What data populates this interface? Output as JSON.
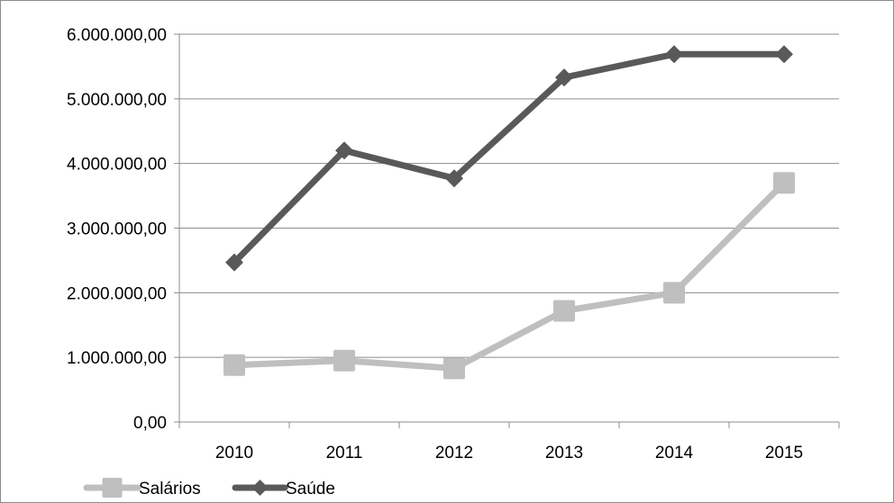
{
  "chart_data": {
    "type": "line",
    "categories": [
      "2010",
      "2011",
      "2012",
      "2013",
      "2014",
      "2015"
    ],
    "series": [
      {
        "name": "Salários",
        "values": [
          880000,
          950000,
          830000,
          1720000,
          2000000,
          3700000
        ],
        "color": "#bfbfbf",
        "marker": "square"
      },
      {
        "name": "Saúde",
        "values": [
          2470000,
          4200000,
          3770000,
          5330000,
          5690000,
          5690000
        ],
        "color": "#595959",
        "marker": "diamond"
      }
    ],
    "y_ticks": [
      "0,00",
      "1.000.000,00",
      "2.000.000,00",
      "3.000.000,00",
      "4.000.000,00",
      "5.000.000,00",
      "6.000.000,00"
    ],
    "ylim": [
      0,
      6000000
    ],
    "grid": "horizontal",
    "legend_position": "bottom-left",
    "title": "",
    "xlabel": "",
    "ylabel": ""
  }
}
